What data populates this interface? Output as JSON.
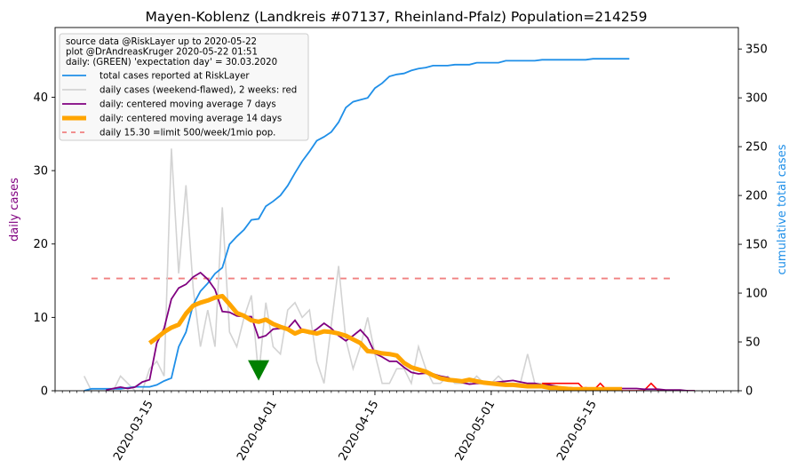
{
  "chart_data": {
    "type": "line",
    "title": "Mayen-Koblenz (Landkreis #07137, Rheinland-Pfalz) Population=214259",
    "ylabel_left": "daily cases",
    "ylabel_right": "cumulative total cases",
    "ylim_left": [
      0,
      49.5
    ],
    "ylim_right": [
      0,
      372
    ],
    "yticks_left": [
      0,
      10,
      20,
      30,
      40
    ],
    "yticks_right": [
      0,
      50,
      100,
      150,
      200,
      250,
      300,
      350
    ],
    "xlim": [
      "2020-03-02",
      "2020-06-04"
    ],
    "xticks": [
      "2020-03-15",
      "2020-04-01",
      "2020-04-15",
      "2020-05-01",
      "2020-05-15"
    ],
    "legend": {
      "position": "top-left",
      "header": [
        "source data @RiskLayer up to 2020-05-22",
        "plot @DrAndreasKruger 2020-05-22 01:51",
        "daily: (GREEN) 'expectation day' = 30.03.2020"
      ],
      "entries": [
        {
          "label": "total cases reported at RiskLayer",
          "color": "#1f8fe8"
        },
        {
          "label": "daily cases (weekend-flawed), 2 weeks: red",
          "color": "#d3d3d3"
        },
        {
          "label": "daily: centered moving average 7 days",
          "color": "#800080"
        },
        {
          "label": "daily: centered moving average 14 days",
          "color": "#ffa500"
        },
        {
          "label": "daily 15.30 =limit 500/week/1mio pop.",
          "color": "#f08080"
        }
      ]
    },
    "limit_line": {
      "value": 15.3,
      "x_start": "2020-03-07",
      "x_end": "2020-05-26",
      "color": "#f08080"
    },
    "expectation_marker": {
      "date": "2020-03-30",
      "value": 1.5,
      "color": "#008000"
    },
    "start_date": "2020-03-06",
    "series": [
      {
        "name": "total cases reported at RiskLayer",
        "axis": "right",
        "color": "#1f8fe8",
        "values": [
          0,
          2,
          2,
          2,
          2,
          2,
          3,
          4,
          4,
          4,
          6,
          10,
          13,
          45,
          60,
          88,
          102,
          110,
          120,
          126,
          150,
          158,
          165,
          175,
          176,
          189,
          194,
          200,
          210,
          223,
          235,
          245,
          256,
          260,
          265,
          275,
          290,
          296,
          298,
          300,
          310,
          315,
          322,
          324,
          325,
          328,
          330,
          331,
          333,
          333,
          333,
          334,
          334,
          334,
          336,
          336,
          336,
          336,
          338,
          338,
          338,
          338,
          338,
          339,
          339,
          339,
          339,
          339,
          339,
          339,
          340,
          340,
          340,
          340,
          340,
          340
        ]
      },
      {
        "name": "daily cases (weekend-flawed), 2 weeks: red",
        "axis": "left",
        "color": "#d3d3d3",
        "red_from": "2020-05-08",
        "values": [
          2,
          0,
          0,
          0,
          0,
          2,
          1,
          0,
          0,
          3,
          4,
          2,
          33,
          16,
          28,
          14,
          6,
          11,
          6,
          25,
          8,
          6,
          10,
          13,
          2,
          12,
          6,
          5,
          11,
          12,
          10,
          11,
          4,
          1,
          9,
          17,
          7,
          3,
          6,
          10,
          5,
          1,
          1,
          3,
          3,
          1,
          6,
          3,
          1,
          1,
          2,
          1,
          1,
          1,
          2,
          1,
          1,
          2,
          1,
          1,
          1,
          5,
          1,
          1,
          1,
          1,
          1,
          1,
          1,
          0,
          0,
          1,
          0,
          0,
          0,
          0,
          0,
          0,
          1,
          0,
          0,
          0,
          0,
          0,
          0
        ]
      },
      {
        "name": "daily: centered moving average 7 days",
        "axis": "left",
        "color": "#800080",
        "values": [
          null,
          null,
          null,
          0.1,
          0.3,
          0.5,
          0.3,
          0.5,
          1.2,
          1.5,
          6.5,
          8.5,
          12.5,
          14,
          14.5,
          15.5,
          16.1,
          15.2,
          13.8,
          10.8,
          10.7,
          10.2,
          10.1,
          10.1,
          7.2,
          7.5,
          8.4,
          8.5,
          8.5,
          9.6,
          8.2,
          7.8,
          8.4,
          9.2,
          8.5,
          7.5,
          6.8,
          7.5,
          8.3,
          7.2,
          5.1,
          4.6,
          4.0,
          4.0,
          3.2,
          2.5,
          2.3,
          2.4,
          2.3,
          2.0,
          1.8,
          1.3,
          1.1,
          0.9,
          1.0,
          1.0,
          1.1,
          1.2,
          1.3,
          1.4,
          1.2,
          1.0,
          1.0,
          0.8,
          0.8,
          0.6,
          0.4,
          0.4,
          0.3,
          0.4,
          0.3,
          0.3,
          0.3,
          0.3,
          0.3,
          0.3,
          0.3,
          0.2,
          0.2,
          0.2,
          0.1,
          0.1,
          0.1,
          0.0,
          0.0
        ]
      },
      {
        "name": "daily: centered moving average 14 days",
        "axis": "left",
        "color": "#ffa500",
        "values": [
          null,
          null,
          null,
          null,
          null,
          null,
          null,
          null,
          null,
          6.5,
          7.2,
          8.0,
          8.6,
          9.0,
          10.5,
          11.6,
          12.0,
          12.3,
          12.7,
          12.9,
          11.8,
          10.6,
          10.2,
          9.6,
          9.4,
          9.7,
          9.1,
          8.7,
          8.4,
          7.8,
          8.2,
          8.0,
          7.8,
          8.1,
          8.0,
          7.8,
          7.5,
          7.0,
          6.5,
          5.4,
          5.3,
          5.1,
          5.0,
          4.8,
          3.8,
          3.2,
          2.9,
          2.6,
          2.1,
          1.7,
          1.5,
          1.4,
          1.3,
          1.5,
          1.3,
          1.1,
          1.0,
          0.9,
          0.8,
          0.8,
          0.7,
          0.6,
          0.6,
          0.6,
          0.4,
          0.4,
          0.3,
          0.2,
          0.2,
          0.2,
          0.2,
          0.2,
          0.2,
          0.2,
          0.2,
          null,
          null,
          null,
          null,
          null,
          null,
          null,
          null,
          null,
          null
        ]
      }
    ]
  }
}
